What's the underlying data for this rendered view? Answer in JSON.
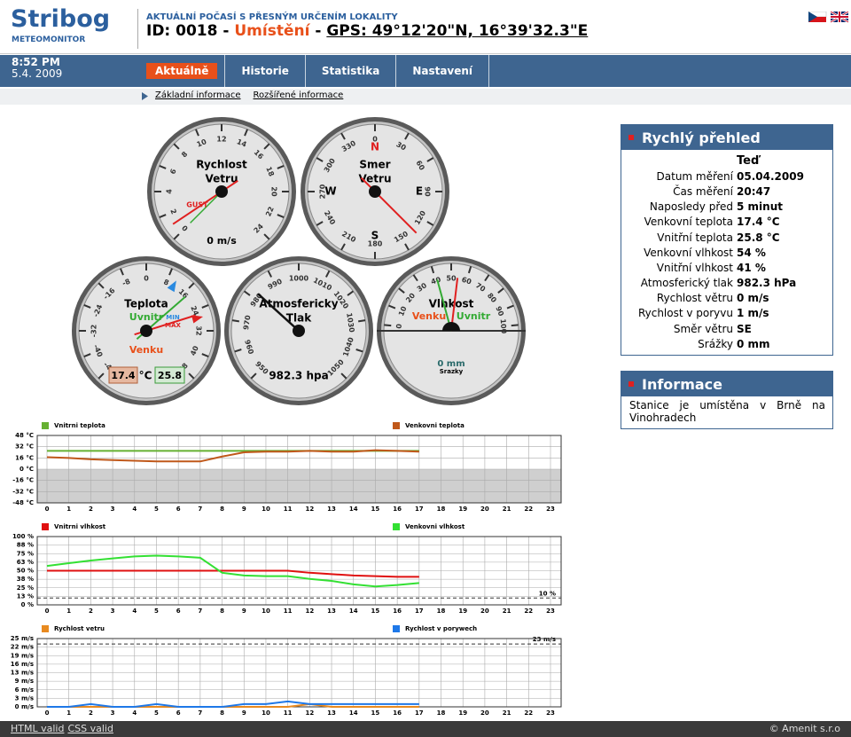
{
  "header": {
    "logo": "Stribog",
    "logo_sub": "METEOMONITOR",
    "tagline": "AKTUÁLNÍ POČASÍ S PŘESNÝM URČENÍM LOKALITY",
    "id": "ID: 0018",
    "sep": "-",
    "location": "Umístění",
    "gps": "GPS: 49°12'20\"N, 16°39'32.3\"E"
  },
  "nav": {
    "time": "8:52 PM",
    "date": "5.4. 2009",
    "tabs": [
      "Aktuálně",
      "Historie",
      "Statistika",
      "Nastavení"
    ]
  },
  "subnav": [
    "Základní informace",
    "Rozšířené informace"
  ],
  "gauges": {
    "wind_speed": {
      "title": [
        "Rychlost",
        "Vetru"
      ],
      "range": [
        0,
        24
      ],
      "ticks": [
        0,
        2,
        4,
        6,
        8,
        10,
        12,
        14,
        16,
        18,
        20,
        22,
        24
      ],
      "value": 0,
      "gust": 1,
      "gust_label": "GUST",
      "value_label": "0 m/s"
    },
    "wind_direction": {
      "title": [
        "Smer",
        "Vetru"
      ],
      "range": [
        0,
        360
      ],
      "ticks": [
        0,
        30,
        60,
        90,
        120,
        150,
        180,
        210,
        240,
        270,
        300,
        330
      ],
      "cardinals": [
        "N",
        "E",
        "S",
        "W"
      ],
      "value": 135
    },
    "temperature": {
      "title": [
        "Teplota"
      ],
      "range": [
        -48,
        48
      ],
      "ticks": [
        -48,
        -40,
        -32,
        -24,
        -16,
        -8,
        0,
        8,
        16,
        24,
        32,
        40,
        48
      ],
      "inside": 25.8,
      "outside": 17.4,
      "max": 27,
      "min": 11,
      "inside_label": "Uvnitr",
      "outside_label": "Venku",
      "max_label": "MAX",
      "min_label": "MIN",
      "unit": "°C"
    },
    "pressure": {
      "title": [
        "Atmosfericky",
        "Tlak"
      ],
      "range": [
        950,
        1050
      ],
      "ticks": [
        950,
        960,
        970,
        980,
        990,
        1000,
        1010,
        1020,
        1030,
        1040,
        1050
      ],
      "value": 982.3,
      "value_label": "982.3 hpa"
    },
    "humidity": {
      "title": [
        "Vlhkost"
      ],
      "range": [
        0,
        100
      ],
      "ticks": [
        0,
        10,
        20,
        30,
        40,
        50,
        60,
        70,
        80,
        90,
        100
      ],
      "outside": 54,
      "inside": 41,
      "outside_label": "Venku",
      "inside_label": "Uvnitr",
      "rain_label": "0 mm",
      "rain_title": "Srazky"
    }
  },
  "overview": {
    "title": "Rychlý přehled",
    "column": "Teď",
    "rows": [
      [
        "Datum měření",
        "05.04.2009"
      ],
      [
        "Čas měření",
        "20:47"
      ],
      [
        "Naposledy před",
        "5 minut"
      ],
      [
        "Venkovní teplota",
        "17.4 °C"
      ],
      [
        "Vnitřní teplota",
        "25.8 °C"
      ],
      [
        "Venkovní vlhkost",
        "54 %"
      ],
      [
        "Vnitřní vlhkost",
        "41 %"
      ],
      [
        "Atmosferický tlak",
        "982.3 hPa"
      ],
      [
        "Rychlost větru",
        "0 m/s"
      ],
      [
        "Rychlost v poryvu",
        "1 m/s"
      ],
      [
        "Směr větru",
        "SE"
      ],
      [
        "Srážky",
        "0 mm"
      ]
    ]
  },
  "info": {
    "title": "Informace",
    "text": "Stanice je umístěna v Brně na Vinohradech"
  },
  "charts": [
    {
      "type": "line",
      "x": [
        0,
        1,
        2,
        3,
        4,
        5,
        6,
        7,
        8,
        9,
        10,
        11,
        12,
        13,
        14,
        15,
        16,
        17,
        18,
        19,
        20,
        21,
        22,
        23
      ],
      "xlim": [
        0,
        23
      ],
      "ylim": [
        -48,
        48
      ],
      "yticks": [
        {
          "value": 48,
          "label": "48 °C"
        },
        {
          "value": 32,
          "label": "32 °C"
        },
        {
          "value": 16,
          "label": "16 °C"
        },
        {
          "value": 0,
          "label": "0 °C"
        },
        {
          "value": -16,
          "label": "-16 °C"
        },
        {
          "value": -32,
          "label": "-32 °C"
        },
        {
          "value": -48,
          "label": "-48 °C"
        }
      ],
      "series": [
        {
          "name": "Vnitrni teplota",
          "color": "#66b032",
          "values": [
            26,
            26,
            26,
            26,
            26,
            26,
            26,
            26,
            26,
            26,
            26,
            26,
            26,
            26,
            26,
            26,
            26,
            26,
            null,
            null,
            null,
            null,
            null,
            null
          ]
        },
        {
          "name": "Venkovni teplota",
          "color": "#c0581a",
          "values": [
            17,
            16,
            14,
            13,
            12,
            11,
            11,
            11,
            18,
            24,
            25,
            25,
            26,
            25,
            25,
            27,
            26,
            25,
            null,
            null,
            null,
            null,
            null,
            null
          ]
        }
      ]
    },
    {
      "type": "line",
      "x": [
        0,
        1,
        2,
        3,
        4,
        5,
        6,
        7,
        8,
        9,
        10,
        11,
        12,
        13,
        14,
        15,
        16,
        17,
        18,
        19,
        20,
        21,
        22,
        23
      ],
      "xlim": [
        0,
        23
      ],
      "ylim": [
        0,
        100
      ],
      "yticks": [
        {
          "value": 100,
          "label": "100 %"
        },
        {
          "value": 87.5,
          "label": "88 %"
        },
        {
          "value": 75,
          "label": "75 %"
        },
        {
          "value": 62.5,
          "label": "63 %"
        },
        {
          "value": 50,
          "label": "50 %"
        },
        {
          "value": 37.5,
          "label": "38 %"
        },
        {
          "value": 25,
          "label": "25 %"
        },
        {
          "value": 12.5,
          "label": "13 %"
        },
        {
          "value": 0,
          "label": "0 %"
        }
      ],
      "threshold": {
        "value": 10,
        "label": "10 %"
      },
      "series": [
        {
          "name": "Vnitrni vlhkost",
          "color": "#e01010",
          "values": [
            50,
            50,
            50,
            50,
            50,
            50,
            50,
            50,
            50,
            50,
            50,
            50,
            47,
            45,
            43,
            42,
            41,
            41,
            null,
            null,
            null,
            null,
            null,
            null
          ]
        },
        {
          "name": "Venkovni vlhkost",
          "color": "#33e033",
          "values": [
            57,
            61,
            65,
            68,
            71,
            72,
            71,
            69,
            47,
            43,
            42,
            42,
            38,
            35,
            30,
            27,
            29,
            32,
            null,
            null,
            null,
            null,
            null,
            null
          ]
        }
      ]
    },
    {
      "type": "line",
      "x": [
        0,
        1,
        2,
        3,
        4,
        5,
        6,
        7,
        8,
        9,
        10,
        11,
        12,
        13,
        14,
        15,
        16,
        17,
        18,
        19,
        20,
        21,
        22,
        23
      ],
      "xlim": [
        0,
        23
      ],
      "ylim": [
        0,
        25
      ],
      "yticks": [
        {
          "value": 25,
          "label": "25 m/s"
        },
        {
          "value": 21.875,
          "label": "22 m/s"
        },
        {
          "value": 18.75,
          "label": "19 m/s"
        },
        {
          "value": 15.625,
          "label": "16 m/s"
        },
        {
          "value": 12.5,
          "label": "13 m/s"
        },
        {
          "value": 9.375,
          "label": "9 m/s"
        },
        {
          "value": 6.25,
          "label": "6 m/s"
        },
        {
          "value": 3.125,
          "label": "3 m/s"
        },
        {
          "value": 0,
          "label": "0 m/s"
        }
      ],
      "threshold": {
        "value": 23,
        "label": "23 m/s"
      },
      "series": [
        {
          "name": "Rychlost vetru",
          "color": "#e88a20",
          "values": [
            0,
            0,
            0,
            0,
            0,
            0,
            0,
            0,
            0,
            0,
            0,
            0,
            1,
            0,
            0,
            0,
            0,
            0,
            null,
            null,
            null,
            null,
            null,
            null
          ]
        },
        {
          "name": "Rychlost v porywech",
          "color": "#1e78e8",
          "values": [
            0,
            0,
            1,
            0,
            0,
            1,
            0,
            0,
            0,
            1,
            1,
            2,
            1,
            1,
            1,
            1,
            1,
            1,
            null,
            null,
            null,
            null,
            null,
            null
          ]
        }
      ]
    }
  ],
  "footer": {
    "links": [
      "HTML valid",
      "CSS valid"
    ],
    "copyright": "© Amenit s.r.o"
  }
}
